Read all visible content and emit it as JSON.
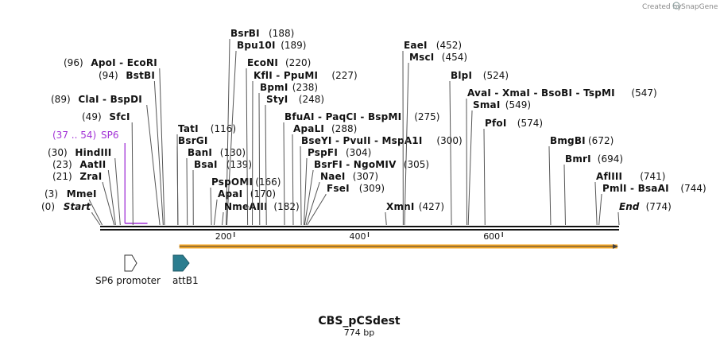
{
  "credit": {
    "text": "Created by",
    "brand": "SnapGene"
  },
  "sequence": {
    "name": "CBS_pCSdest",
    "length_label": "774 bp",
    "length": 774
  },
  "ruler": {
    "ticks": [
      200,
      400,
      600
    ]
  },
  "features": [
    {
      "name": "SP6 promoter",
      "start": 37,
      "end": 54,
      "color": "#ffffff",
      "direction": "forward"
    },
    {
      "name": "attB1",
      "start": 110,
      "end": 134,
      "color": "#2b7d8f",
      "direction": "forward"
    }
  ],
  "orf": {
    "start": 130,
    "end": 774,
    "color": "#f6a623"
  },
  "sites": [
    {
      "name": "Start",
      "pos_label": "(0)",
      "pos": 0,
      "italic": true
    },
    {
      "name": "MmeI",
      "pos_label": "(3)",
      "pos": 3
    },
    {
      "name": "ZraI",
      "pos_label": "(21)",
      "pos": 21
    },
    {
      "name": "AatII",
      "pos_label": "(23)",
      "pos": 23
    },
    {
      "name": "HindIII",
      "pos_label": "(30)",
      "pos": 30
    },
    {
      "name": "SP6",
      "pos_label": "(37 .. 54)",
      "pos": 37,
      "primer": true
    },
    {
      "name": "SfcI",
      "pos_label": "(49)",
      "pos": 49
    },
    {
      "name": "ClaI - BspDI",
      "pos_label": "(89)",
      "pos": 89
    },
    {
      "name": "BstBI",
      "pos_label": "(94)",
      "pos": 94
    },
    {
      "name": "ApoI - EcoRI",
      "pos_label": "(96)",
      "pos": 96
    },
    {
      "name": "TatI",
      "pos_label": "(116)",
      "pos": 116
    },
    {
      "name": "BsrGI",
      "pos_label": "",
      "pos": 116
    },
    {
      "name": "BanI",
      "pos_label": "(130)",
      "pos": 130
    },
    {
      "name": "BsaI",
      "pos_label": "(139)",
      "pos": 139
    },
    {
      "name": "BsrBI",
      "pos_label": "(188)",
      "pos": 188
    },
    {
      "name": "Bpu10I",
      "pos_label": "(189)",
      "pos": 189
    },
    {
      "name": "PspOMI",
      "pos_label": "(166)",
      "pos": 166
    },
    {
      "name": "ApaI",
      "pos_label": "(170)",
      "pos": 170
    },
    {
      "name": "NmeAIII",
      "pos_label": "(182)",
      "pos": 182
    },
    {
      "name": "EcoNI",
      "pos_label": "(220)",
      "pos": 220
    },
    {
      "name": "KflI - PpuMI",
      "pos_label": "(227)",
      "pos": 227
    },
    {
      "name": "BpmI",
      "pos_label": "(238)",
      "pos": 238
    },
    {
      "name": "StyI",
      "pos_label": "(248)",
      "pos": 248
    },
    {
      "name": "BfuAI - PaqCI - BspMI",
      "pos_label": "(275)",
      "pos": 275
    },
    {
      "name": "ApaLI",
      "pos_label": "(288)",
      "pos": 288
    },
    {
      "name": "BseYI - PvuII - MspA1I",
      "pos_label": "(300)",
      "pos": 300
    },
    {
      "name": "PspFI",
      "pos_label": "(304)",
      "pos": 304
    },
    {
      "name": "BsrFI - NgoMIV",
      "pos_label": "(305)",
      "pos": 305
    },
    {
      "name": "NaeI",
      "pos_label": "(307)",
      "pos": 307
    },
    {
      "name": "FseI",
      "pos_label": "(309)",
      "pos": 309
    },
    {
      "name": "XmnI",
      "pos_label": "(427)",
      "pos": 427
    },
    {
      "name": "EaeI",
      "pos_label": "(452)",
      "pos": 452
    },
    {
      "name": "MscI",
      "pos_label": "(454)",
      "pos": 454
    },
    {
      "name": "BlpI",
      "pos_label": "(524)",
      "pos": 524
    },
    {
      "name": "AvaI - XmaI - BsoBI - TspMI",
      "pos_label": "(547)",
      "pos": 547
    },
    {
      "name": "SmaI",
      "pos_label": "(549)",
      "pos": 549
    },
    {
      "name": "PfoI",
      "pos_label": "(574)",
      "pos": 574
    },
    {
      "name": "BmgBI",
      "pos_label": "(672)",
      "pos": 672
    },
    {
      "name": "BmrI",
      "pos_label": "(694)",
      "pos": 694
    },
    {
      "name": "AflIII",
      "pos_label": "(741)",
      "pos": 741
    },
    {
      "name": "PmlI - BsaAI",
      "pos_label": "(744)",
      "pos": 744
    },
    {
      "name": "End",
      "pos_label": "(774)",
      "pos": 774,
      "italic": true
    }
  ]
}
